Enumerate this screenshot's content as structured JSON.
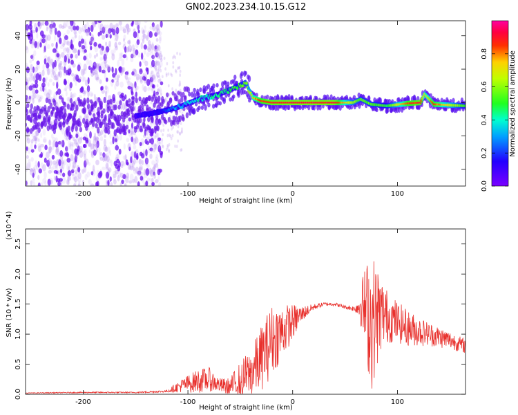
{
  "title": "GN02.2023.234.10.15.G12",
  "colors": {
    "snr_line": "#e8302c",
    "spectral_low": "#7a18e8",
    "spectral_mid": "#2adfd0",
    "spectral_high": "#f01638",
    "axis": "#000000"
  },
  "chart_data": [
    {
      "type": "heatmap",
      "title": "GN02.2023.234.10.15.G12",
      "xlabel": "Height of straight line (km)",
      "ylabel": "Frequency (Hz)",
      "xlim": [
        -255,
        165
      ],
      "ylim": [
        -50,
        49
      ],
      "x_ticks": [
        -200,
        -100,
        0,
        100
      ],
      "x_tick_labels": [
        "-200",
        "-100",
        "0",
        "100"
      ],
      "y_ticks": [
        -40,
        -20,
        0,
        20,
        40
      ],
      "y_tick_labels": [
        "-40",
        "-20",
        "0",
        "20",
        "40"
      ],
      "colorbar": {
        "label": "Normalized spectral amplitude",
        "range": [
          0,
          1
        ],
        "ticks": [
          0.0,
          0.2,
          0.4,
          0.6,
          0.8
        ],
        "tick_labels": [
          "0.0",
          "0.2",
          "0.4",
          "0.6",
          "0.8"
        ],
        "colormap": "rainbow (violet-blue-cyan-green-yellow-red-magenta)"
      },
      "ridge": {
        "description": "dominant frequency track",
        "x": [
          -150,
          -130,
          -110,
          -90,
          -70,
          -55,
          -45,
          -38,
          -30,
          -20,
          0,
          40,
          58,
          65,
          75,
          90,
          110,
          122,
          126,
          135,
          165
        ],
        "y": [
          -8,
          -6,
          -3,
          2,
          5,
          9,
          12,
          3,
          1,
          0,
          0,
          0,
          0,
          2,
          -1,
          -2,
          -0.5,
          0,
          5,
          -1,
          -2
        ],
        "amplitude": [
          0.1,
          0.15,
          0.3,
          0.4,
          0.45,
          0.5,
          0.55,
          0.75,
          0.85,
          0.9,
          0.92,
          0.92,
          0.6,
          0.55,
          0.55,
          0.5,
          0.85,
          0.9,
          0.7,
          0.85,
          0.5
        ]
      },
      "noise_region_x": [
        -255,
        -135
      ]
    },
    {
      "type": "line",
      "xlabel": "Height of straight line (km)",
      "ylabel": "SNR (10 * v/v)",
      "y_multiplier": "(x10^4)",
      "xlim": [
        -255,
        165
      ],
      "ylim": [
        0,
        2.75
      ],
      "x_ticks": [
        -200,
        -100,
        0,
        100
      ],
      "x_tick_labels": [
        "-200",
        "-100",
        "0",
        "100"
      ],
      "y_ticks": [
        0.0,
        0.5,
        1.0,
        1.5,
        2.0,
        2.5
      ],
      "y_tick_labels": [
        "0.0",
        "0.5",
        "1.0",
        "1.5",
        "2.0",
        "2.5"
      ],
      "series": [
        {
          "name": "",
          "x": [
            -255,
            -200,
            -150,
            -120,
            -105,
            -90,
            -80,
            -70,
            -60,
            -50,
            -40,
            -30,
            -20,
            -10,
            0,
            10,
            20,
            30,
            40,
            50,
            60,
            65,
            70,
            75,
            80,
            85,
            90,
            100,
            110,
            120,
            130,
            140,
            150,
            165
          ],
          "y": [
            0.02,
            0.03,
            0.03,
            0.05,
            0.15,
            0.22,
            0.25,
            0.15,
            0.12,
            0.25,
            0.35,
            0.6,
            0.9,
            1.05,
            1.2,
            1.35,
            1.45,
            1.5,
            1.5,
            1.45,
            1.42,
            1.5,
            1.4,
            1.2,
            1.3,
            1.35,
            1.3,
            1.2,
            1.1,
            1.05,
            1.0,
            0.95,
            0.9,
            0.8
          ],
          "noise_amplitude": [
            0.005,
            0.01,
            0.01,
            0.02,
            0.12,
            0.2,
            0.2,
            0.12,
            0.15,
            0.3,
            0.4,
            0.55,
            0.6,
            0.45,
            0.3,
            0.12,
            0.05,
            0.03,
            0.03,
            0.03,
            0.05,
            0.35,
            0.8,
            1.2,
            0.9,
            0.6,
            0.45,
            0.35,
            0.3,
            0.25,
            0.2,
            0.18,
            0.15,
            0.12
          ]
        }
      ]
    }
  ]
}
